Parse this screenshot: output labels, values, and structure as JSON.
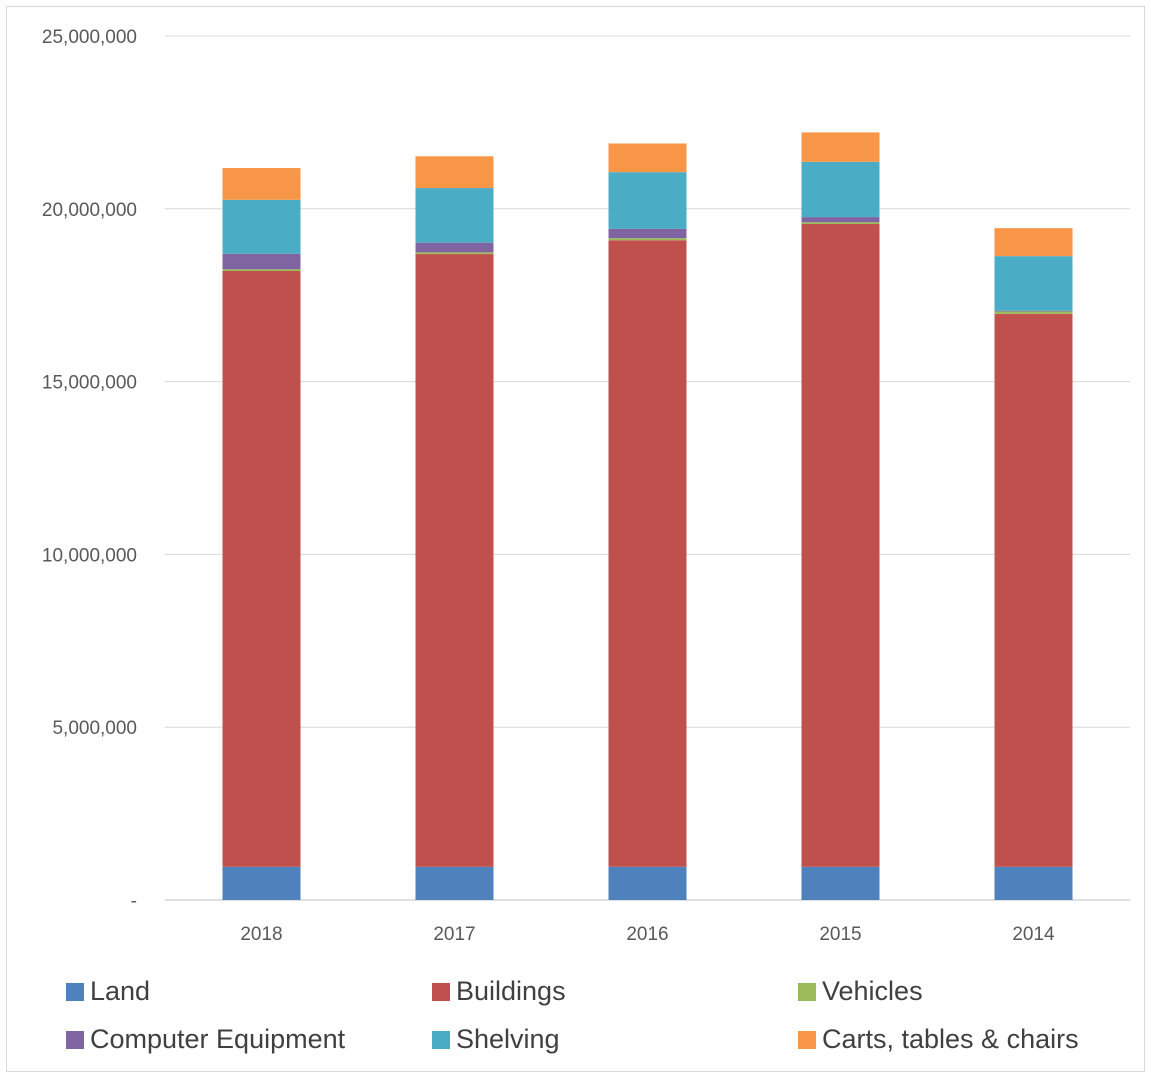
{
  "chart_data": {
    "type": "bar",
    "stacked": true,
    "title": "",
    "xlabel": "",
    "ylabel": "",
    "categories": [
      "2018",
      "2017",
      "2016",
      "2015",
      "2014"
    ],
    "ylim": [
      0,
      25000000
    ],
    "yticks": [
      0,
      5000000,
      10000000,
      15000000,
      20000000,
      25000000
    ],
    "ytick_labels": [
      "-",
      "5,000,000",
      "10,000,000",
      "15,000,000",
      "20,000,000",
      "25,000,000"
    ],
    "grid": true,
    "legend_position": "bottom",
    "series": [
      {
        "name": "Land",
        "color": "#4f81bd",
        "values": [
          960000,
          960000,
          960000,
          960000,
          960000
        ]
      },
      {
        "name": "Buildings",
        "color": "#c0504d",
        "values": [
          17240000,
          17730000,
          18130000,
          18600000,
          16000000
        ]
      },
      {
        "name": "Vehicles",
        "color": "#9bbb59",
        "values": [
          50000,
          50000,
          60000,
          50000,
          70000
        ]
      },
      {
        "name": "Computer Equipment",
        "color": "#8064a2",
        "values": [
          450000,
          280000,
          270000,
          150000,
          20000
        ]
      },
      {
        "name": "Shelving",
        "color": "#4bacc6",
        "values": [
          1560000,
          1580000,
          1640000,
          1600000,
          1580000
        ]
      },
      {
        "name": "Carts, tables & chairs",
        "color": "#f79646",
        "values": [
          920000,
          920000,
          830000,
          850000,
          810000
        ]
      }
    ]
  }
}
